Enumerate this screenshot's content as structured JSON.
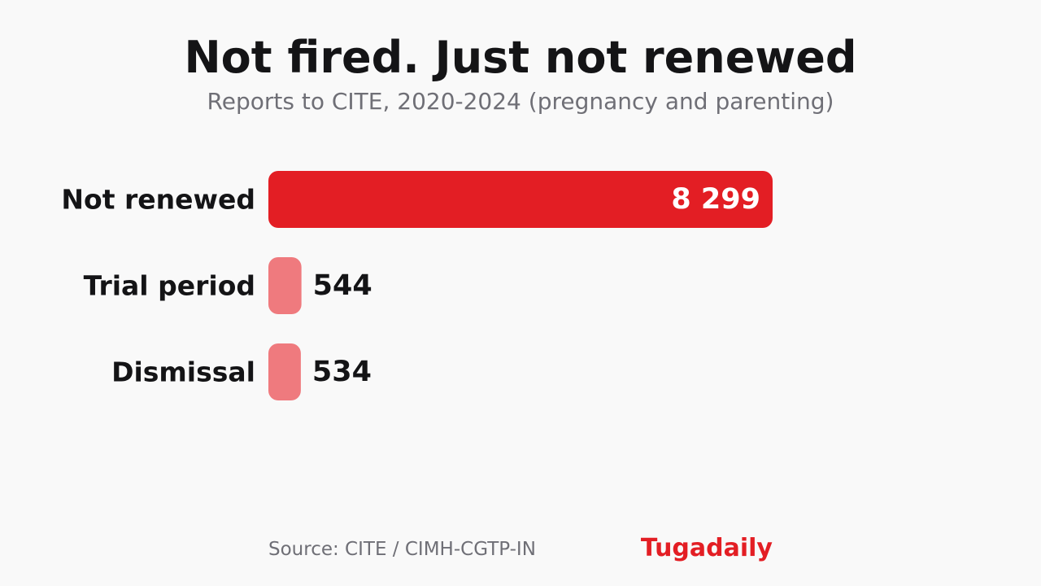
{
  "chart_data": {
    "type": "bar",
    "orientation": "horizontal",
    "title": "Not fired. Just not renewed",
    "subtitle": "Reports to CITE, 2020-2024 (pregnancy and parenting)",
    "categories": [
      "Not renewed",
      "Trial period",
      "Dismissal"
    ],
    "values": [
      8299,
      544,
      534
    ],
    "value_labels": [
      "8 299",
      "544",
      "534"
    ],
    "highlight_index": 0,
    "grid": false,
    "legend": "none",
    "xlabel": "",
    "ylabel": ""
  },
  "colors": {
    "highlight": "#e31e24",
    "muted": "#ef7a7e",
    "label": "#141416",
    "value_inside": "#ffffff",
    "value_outside": "#141416",
    "brand": "#e31e24"
  },
  "footer": {
    "source": "Source: CITE / CIMH-CGTP-IN",
    "brand": "Tugadaily"
  }
}
